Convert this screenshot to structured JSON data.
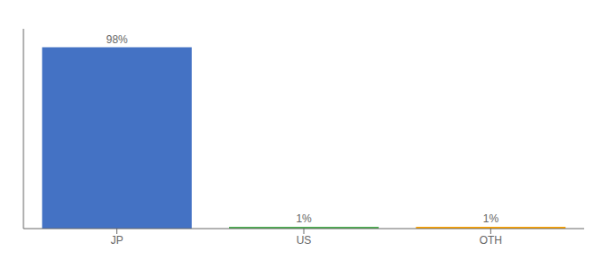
{
  "chart_data": {
    "type": "bar",
    "categories": [
      "JP",
      "US",
      "OTH"
    ],
    "values": [
      98,
      1,
      1
    ],
    "value_labels": [
      "98%",
      "1%",
      "1%"
    ],
    "colors": [
      "#4472C4",
      "#4CAF50",
      "#FFA500"
    ],
    "ylim": [
      0,
      108
    ],
    "grid": false,
    "data_labels": true,
    "tick_labels": "x"
  }
}
